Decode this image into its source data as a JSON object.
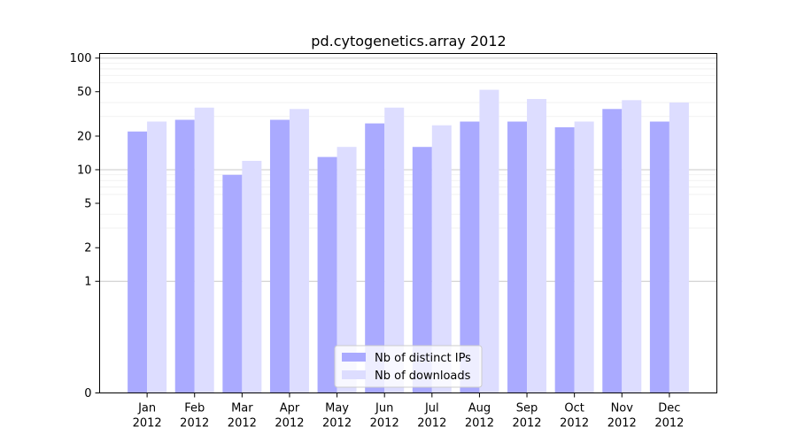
{
  "chart_data": {
    "type": "bar",
    "title": "pd.cytogenetics.array 2012",
    "xlabel": "",
    "ylabel": "",
    "scale": "symlog",
    "ylim": [
      0,
      110
    ],
    "yticks": [
      0,
      1,
      2,
      5,
      10,
      20,
      50,
      100
    ],
    "categories": [
      [
        "Jan",
        "2012"
      ],
      [
        "Feb",
        "2012"
      ],
      [
        "Mar",
        "2012"
      ],
      [
        "Apr",
        "2012"
      ],
      [
        "May",
        "2012"
      ],
      [
        "Jun",
        "2012"
      ],
      [
        "Jul",
        "2012"
      ],
      [
        "Aug",
        "2012"
      ],
      [
        "Sep",
        "2012"
      ],
      [
        "Oct",
        "2012"
      ],
      [
        "Nov",
        "2012"
      ],
      [
        "Dec",
        "2012"
      ]
    ],
    "series": [
      {
        "name": "Nb of distinct IPs",
        "color": "#aaaaff",
        "values": [
          22,
          28,
          9,
          28,
          13,
          26,
          16,
          27,
          27,
          24,
          35,
          27
        ]
      },
      {
        "name": "Nb of downloads",
        "color": "#ddddff",
        "values": [
          27,
          36,
          12,
          35,
          16,
          36,
          25,
          52,
          43,
          27,
          42,
          40
        ]
      }
    ],
    "legend_position": "lower center",
    "grid": true
  }
}
